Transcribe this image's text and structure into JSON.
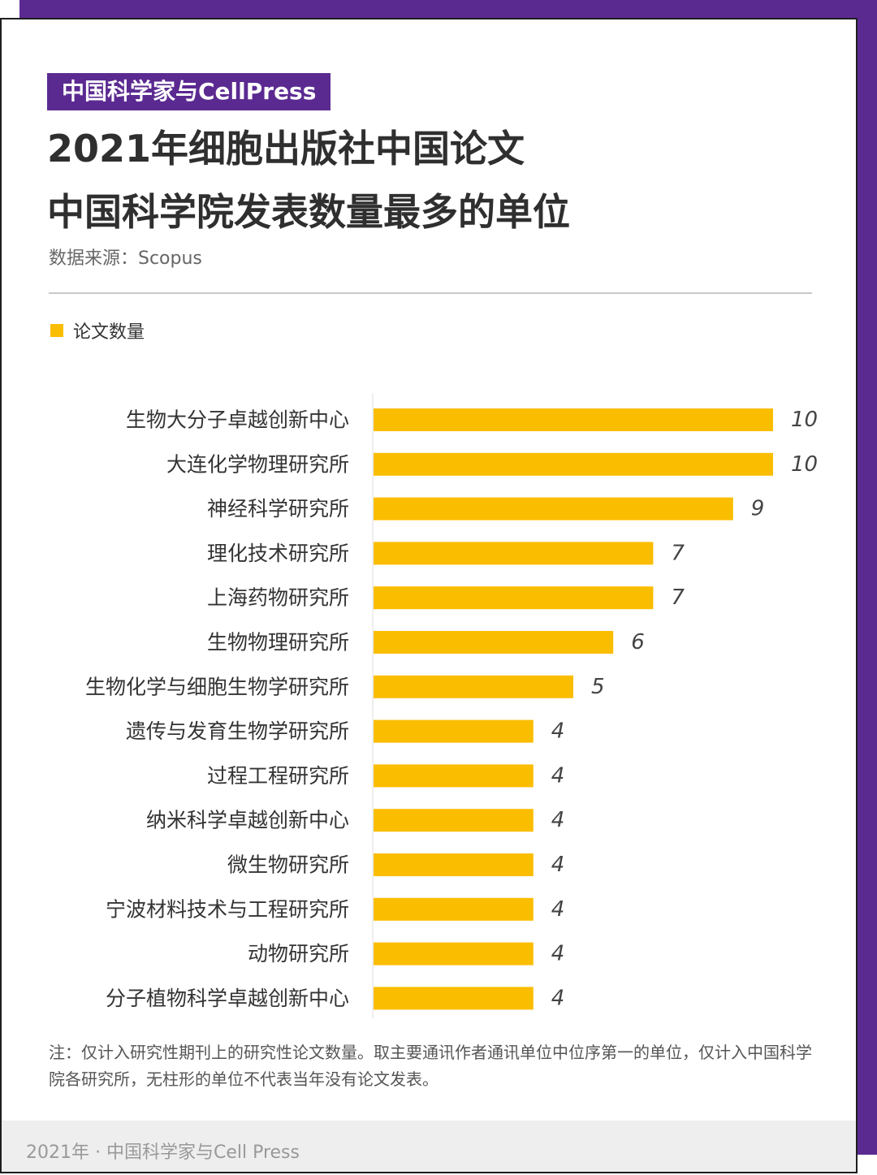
{
  "brand_tag": "中国科学家与CellPress",
  "title_line1": "2021年细胞出版社中国论文",
  "title_line2": "中国科学院发表数量最多的单位",
  "source": "数据来源：Scopus",
  "note": "注：仅计入研究性期刊上的研究性论文数量。取主要通讯作者通讯单位中位序第一的单位，仅计入中国科学院各研究所，无柱形的单位不代表当年没有论文发表。",
  "footer": "2021年 · 中国科学家与Cell Press",
  "colors": {
    "brand": "#5b2a91",
    "bar": "#fbbd00"
  },
  "chart_data": {
    "type": "bar",
    "orientation": "horizontal",
    "legend": [
      "论文数量"
    ],
    "categories": [
      "生物大分子卓越创新中心",
      "大连化学物理研究所",
      "神经科学研究所",
      "理化技术研究所",
      "上海药物研究所",
      "生物物理研究所",
      "生物化学与细胞生物学研究所",
      "遗传与发育生物学研究所",
      "过程工程研究所",
      "纳米科学卓越创新中心",
      "微生物研究所",
      "宁波材料技术与工程研究所",
      "动物研究所",
      "分子植物科学卓越创新中心"
    ],
    "series": [
      {
        "name": "论文数量",
        "values": [
          10,
          10,
          9,
          7,
          7,
          6,
          5,
          4,
          4,
          4,
          4,
          4,
          4,
          4
        ]
      }
    ],
    "xlim": [
      0,
      10
    ]
  }
}
